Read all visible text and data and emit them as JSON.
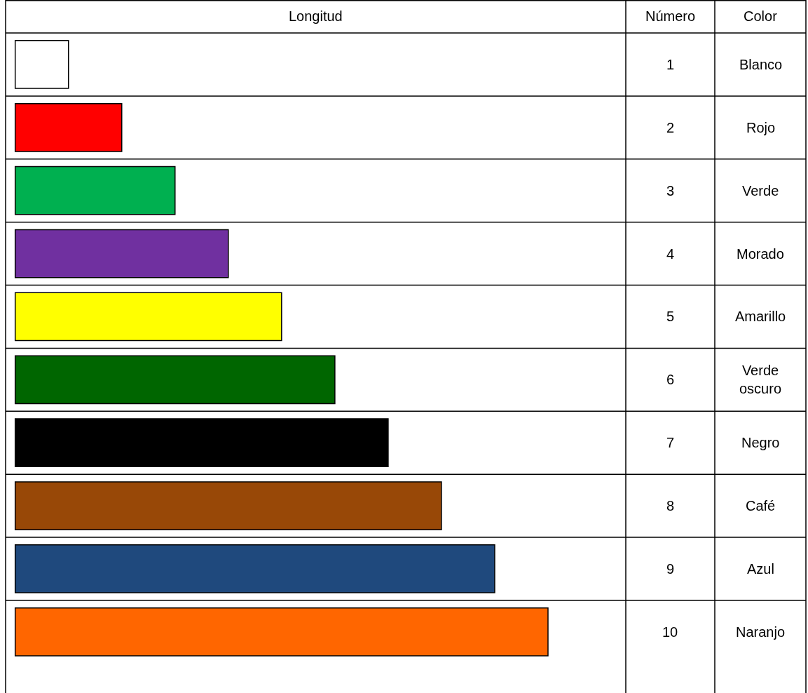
{
  "chart_data": {
    "type": "bar",
    "orientation": "horizontal",
    "xlabel": "Longitud",
    "ylabel": "Color",
    "annotations": [
      "Número"
    ],
    "categories": [
      "Blanco",
      "Rojo",
      "Verde",
      "Morado",
      "Amarillo",
      "Verde oscuro",
      "Negro",
      "Café",
      "Azul",
      "Naranjo"
    ],
    "values": [
      1,
      2,
      3,
      4,
      5,
      6,
      7,
      8,
      9,
      10
    ],
    "colors": [
      "#ffffff",
      "#ff0000",
      "#00b050",
      "#7030a0",
      "#ffff00",
      "#006600",
      "#000000",
      "#984807",
      "#1f497d",
      "#ff6600"
    ],
    "data_labels": true,
    "grid": false,
    "legend": false
  }
}
